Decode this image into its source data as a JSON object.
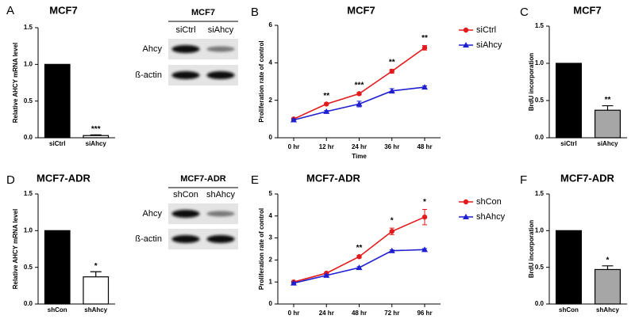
{
  "chart_data": [
    {
      "type": "bar",
      "panel": "A",
      "title": "MCF7",
      "ylabel": "Relative AHCY mRNA level",
      "categories": [
        "siCtrl",
        "siAhcy"
      ],
      "values": [
        1.0,
        0.03
      ],
      "errors": [
        0,
        0.01
      ],
      "colors": [
        "#000000",
        "#ffffff"
      ],
      "annotations": [
        null,
        "***"
      ],
      "ylim": [
        0,
        1.5
      ],
      "yticks": [
        {
          "value": 0,
          "label": "0.0"
        },
        {
          "value": 0.5,
          "label": "0.5"
        },
        {
          "value": 1,
          "label": "1.0"
        },
        {
          "value": 1.5,
          "label": "1.5"
        }
      ]
    },
    {
      "type": "line",
      "panel": "B",
      "title": "MCF7",
      "xlabel": "Time",
      "ylabel": "Proliferation rate of control",
      "categories": [
        "0 hr",
        "12 hr",
        "24 hr",
        "36 hr",
        "48 hr"
      ],
      "series": [
        {
          "name": "siCtrl",
          "color": "#e31a1c",
          "marker": "circle",
          "values": [
            1.0,
            1.8,
            2.35,
            3.55,
            4.8
          ],
          "errors": [
            0.05,
            0.05,
            0.07,
            0.1,
            0.12
          ]
        },
        {
          "name": "siAhcy",
          "color": "#1f1fd0",
          "marker": "triangle",
          "values": [
            0.95,
            1.4,
            1.8,
            2.5,
            2.7
          ],
          "errors": [
            0.05,
            0.05,
            0.15,
            0.12,
            0.07
          ]
        }
      ],
      "annotations": [
        null,
        "**",
        "***",
        "**",
        "**"
      ],
      "ylim": [
        0,
        6
      ],
      "yticks": [
        0,
        2,
        4,
        6
      ]
    },
    {
      "type": "bar",
      "panel": "C",
      "title": "MCF7",
      "ylabel": "BrdU incorporation",
      "categories": [
        "siCtrl",
        "siAhcy"
      ],
      "values": [
        1.0,
        0.37
      ],
      "errors": [
        0,
        0.06
      ],
      "colors": [
        "#000000",
        "#a6a6a6"
      ],
      "annotations": [
        null,
        "**"
      ],
      "ylim": [
        0,
        1.5
      ],
      "yticks": [
        {
          "value": 0,
          "label": "0.0"
        },
        {
          "value": 0.5,
          "label": "0.5"
        },
        {
          "value": 1,
          "label": "1.0"
        },
        {
          "value": 1.5,
          "label": "1.5"
        }
      ]
    },
    {
      "type": "bar",
      "panel": "D",
      "title": "MCF7-ADR",
      "ylabel": "Relative AHCY mRNA level",
      "categories": [
        "shCon",
        "shAhcy"
      ],
      "values": [
        1.0,
        0.37
      ],
      "errors": [
        0,
        0.07
      ],
      "colors": [
        "#000000",
        "#ffffff"
      ],
      "annotations": [
        null,
        "*"
      ],
      "ylim": [
        0,
        1.5
      ],
      "yticks": [
        {
          "value": 0,
          "label": "0.0"
        },
        {
          "value": 0.5,
          "label": "0.5"
        },
        {
          "value": 1,
          "label": "1.0"
        },
        {
          "value": 1.5,
          "label": "1.5"
        }
      ]
    },
    {
      "type": "line",
      "panel": "E",
      "title": "MCF7-ADR",
      "ylabel": "Proliferation rate of control",
      "categories": [
        "0 hr",
        "24 hr",
        "48 hr",
        "72 hr",
        "96 hr"
      ],
      "series": [
        {
          "name": "shCon",
          "color": "#e31a1c",
          "marker": "circle",
          "values": [
            1.0,
            1.4,
            2.15,
            3.3,
            3.95
          ],
          "errors": [
            0.04,
            0.04,
            0.06,
            0.15,
            0.35
          ]
        },
        {
          "name": "shAhcy",
          "color": "#1f1fd0",
          "marker": "triangle",
          "values": [
            0.95,
            1.3,
            1.65,
            2.42,
            2.47
          ],
          "errors": [
            0.04,
            0.04,
            0.05,
            0.04,
            0.05
          ]
        }
      ],
      "annotations": [
        null,
        null,
        "**",
        "*",
        "*"
      ],
      "ylim": [
        0,
        5
      ],
      "yticks": [
        0,
        1,
        2,
        3,
        4,
        5
      ]
    },
    {
      "type": "bar",
      "panel": "F",
      "title": "MCF7-ADR",
      "ylabel": "BrdU incorporation",
      "categories": [
        "shCon",
        "shAhcy"
      ],
      "values": [
        1.0,
        0.47
      ],
      "errors": [
        0,
        0.05
      ],
      "colors": [
        "#000000",
        "#a6a6a6"
      ],
      "annotations": [
        null,
        "*"
      ],
      "ylim": [
        0,
        1.5
      ],
      "yticks": [
        {
          "value": 0,
          "label": "0.0"
        },
        {
          "value": 0.5,
          "label": "0.5"
        },
        {
          "value": 1,
          "label": "1.0"
        },
        {
          "value": 1.5,
          "label": "1.5"
        }
      ]
    }
  ],
  "blots": [
    {
      "title": "MCF7",
      "lanes": [
        "siCtrl",
        "siAhcy"
      ],
      "rows": [
        "Ahcy",
        "ß-actin"
      ]
    },
    {
      "title": "MCF7-ADR",
      "lanes": [
        "shCon",
        "shAhcy"
      ],
      "rows": [
        "Ahcy",
        "ß-actin"
      ]
    }
  ]
}
